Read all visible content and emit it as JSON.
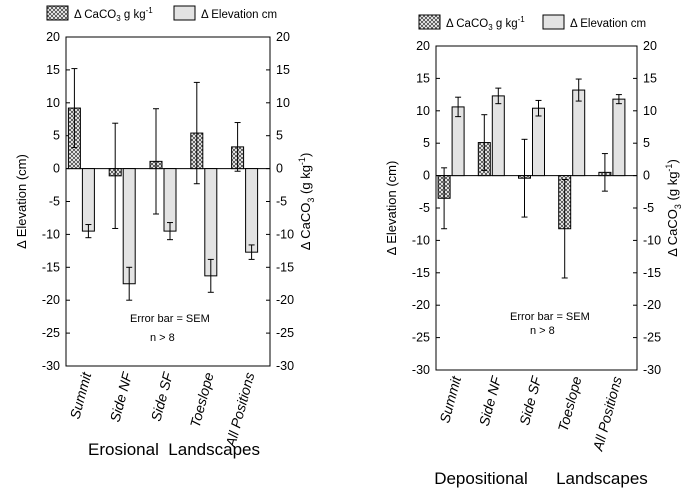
{
  "legend": [
    {
      "label": "Δ CaCO",
      "sub": "3",
      "rest": " g kg",
      "sup": "-1",
      "pattern": "crosshatch"
    },
    {
      "label": "Δ Elevation cm",
      "pattern": "gray"
    }
  ],
  "colors": {
    "elevation_fill": "#e3e3e3",
    "hatch_line": "#444444",
    "axis": "#000000"
  },
  "chart_data": [
    {
      "type": "bar",
      "subtitle": "Erosional  Landscapes",
      "categories": [
        "Summit",
        "Side NF",
        "Side SF",
        "Toeslope",
        "All Positions"
      ],
      "ylabel_left": "Δ Elevation (cm)",
      "ylabel_right": "Δ CaCO3 (g kg-1)",
      "ylim": [
        -30,
        20
      ],
      "yticks": [
        20,
        15,
        10,
        5,
        0,
        -5,
        -10,
        -15,
        -20,
        -25,
        -30
      ],
      "grid": false,
      "annotation": [
        "Error bar = SEM",
        "n  > 8"
      ],
      "series": [
        {
          "name": "Δ CaCO3 g kg-1",
          "values": [
            9.2,
            -1.1,
            1.1,
            5.4,
            3.3
          ],
          "error": [
            6.0,
            8.0,
            8.0,
            7.7,
            3.7
          ]
        },
        {
          "name": "Δ Elevation cm",
          "values": [
            -9.5,
            -17.5,
            -9.5,
            -16.3,
            -12.7
          ],
          "error": [
            1.0,
            2.5,
            1.3,
            2.5,
            1.1
          ]
        }
      ]
    },
    {
      "type": "bar",
      "subtitle": "Depositional      Landscapes",
      "categories": [
        "Summit",
        "Side NF",
        "Side SF",
        "Toeslope",
        "All Positions"
      ],
      "ylabel_left": "Δ Elevation (cm)",
      "ylabel_right": "Δ CaCO3 (g kg-1)",
      "ylim": [
        -30,
        20
      ],
      "yticks": [
        20,
        15,
        10,
        5,
        0,
        -5,
        -10,
        -15,
        -20,
        -25,
        -30
      ],
      "grid": false,
      "annotation": [
        "Error bar = SEM",
        "n  > 8"
      ],
      "series": [
        {
          "name": "Δ CaCO3 g kg-1",
          "values": [
            -3.5,
            5.1,
            -0.4,
            -8.2,
            0.5
          ],
          "error": [
            4.7,
            4.3,
            6.0,
            7.6,
            2.9
          ]
        },
        {
          "name": "Δ Elevation cm",
          "values": [
            10.6,
            12.3,
            10.4,
            13.2,
            11.8
          ],
          "error": [
            1.5,
            1.2,
            1.2,
            1.7,
            0.7
          ]
        }
      ]
    }
  ]
}
